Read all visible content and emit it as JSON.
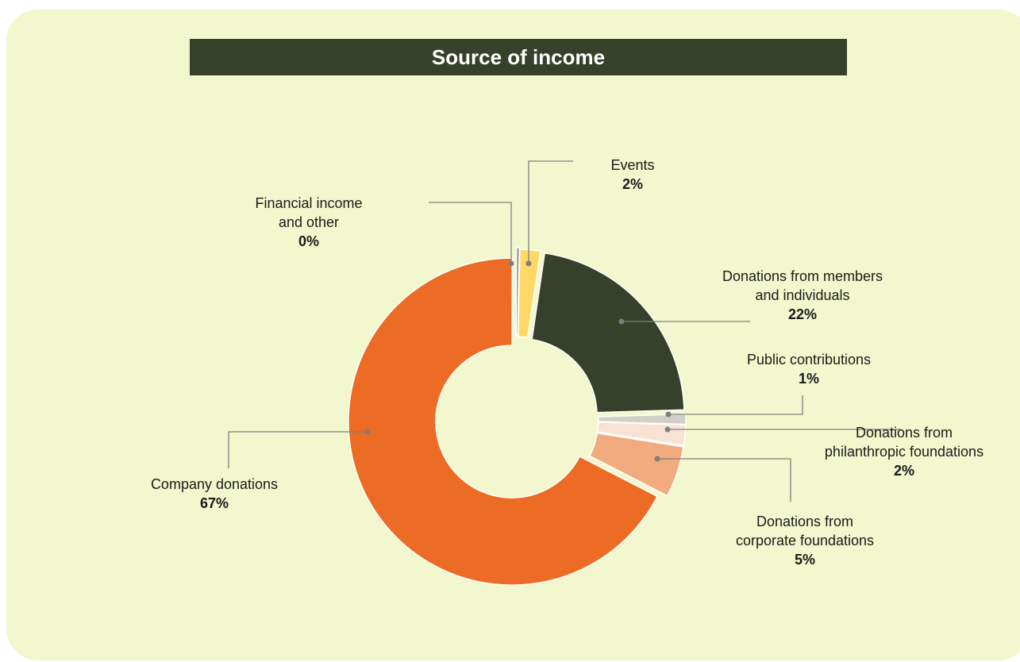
{
  "chart_data": {
    "type": "pie",
    "donut": true,
    "title": "Source of income",
    "slices": [
      {
        "name_lines": [
          "Events"
        ],
        "pct_label": "2%",
        "value": 2,
        "color": "#ffd866"
      },
      {
        "name_lines": [
          "Donations from members",
          "and individuals"
        ],
        "pct_label": "22%",
        "value": 22,
        "color": "#37402a"
      },
      {
        "name_lines": [
          "Public contributions"
        ],
        "pct_label": "1%",
        "value": 1,
        "color": "#d0d0c8"
      },
      {
        "name_lines": [
          "Donations from",
          "philanthropic foundations"
        ],
        "pct_label": "2%",
        "value": 2,
        "color": "#f8e2d4"
      },
      {
        "name_lines": [
          "Donations from",
          "corporate foundations"
        ],
        "pct_label": "5%",
        "value": 5,
        "color": "#f2aa7f"
      },
      {
        "name_lines": [
          "Company donations"
        ],
        "pct_label": "67%",
        "value": 67,
        "color": "#ec6c25"
      },
      {
        "name_lines": [
          "Financial income",
          "and other"
        ],
        "pct_label": "0%",
        "value": 0.3,
        "color": "#9a9a9a"
      }
    ]
  }
}
